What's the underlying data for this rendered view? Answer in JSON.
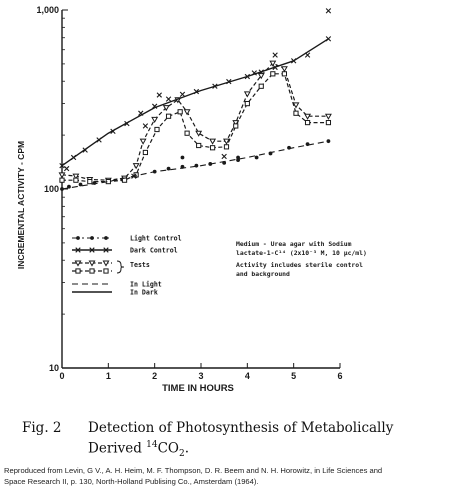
{
  "chart_data": {
    "type": "line",
    "xlabel": "TIME IN HOURS",
    "ylabel": "INCREMENTAL ACTIVITY - CPM",
    "x_scale": "linear",
    "y_scale": "log",
    "xlim": [
      0,
      6
    ],
    "ylim": [
      10,
      1000
    ],
    "x_ticks": [
      "0",
      "1",
      "2",
      "3",
      "4",
      "5",
      "6"
    ],
    "y_ticks": [
      "10",
      "100",
      "1,000"
    ],
    "grid": false,
    "legend_position": "lower-left",
    "series": [
      {
        "name": "Light Control",
        "style": "dash-dot-circle",
        "points": [
          [
            0.0,
            100
          ],
          [
            0.15,
            103
          ],
          [
            0.4,
            106
          ],
          [
            0.7,
            108
          ],
          [
            1.0,
            110
          ],
          [
            1.3,
            113
          ],
          [
            1.6,
            118
          ],
          [
            2.0,
            125
          ],
          [
            2.3,
            130
          ],
          [
            2.6,
            133
          ],
          [
            2.9,
            135
          ],
          [
            3.2,
            138
          ],
          [
            3.5,
            140
          ],
          [
            3.8,
            145
          ],
          [
            4.2,
            150
          ],
          [
            4.5,
            158
          ],
          [
            4.9,
            170
          ],
          [
            5.3,
            178
          ],
          [
            5.75,
            185
          ]
        ]
      },
      {
        "name": "Dark Control",
        "style": "solid-x",
        "points": [
          [
            0.0,
            135
          ],
          [
            0.25,
            150
          ],
          [
            0.5,
            165
          ],
          [
            0.8,
            188
          ],
          [
            1.1,
            210
          ],
          [
            1.4,
            232
          ],
          [
            1.7,
            265
          ],
          [
            2.0,
            290
          ],
          [
            2.3,
            318
          ],
          [
            2.6,
            338
          ],
          [
            2.9,
            350
          ],
          [
            3.3,
            375
          ],
          [
            3.6,
            398
          ],
          [
            4.0,
            425
          ],
          [
            4.3,
            450
          ],
          [
            4.6,
            478
          ],
          [
            5.0,
            520
          ],
          [
            5.3,
            560
          ],
          [
            5.75,
            690
          ]
        ]
      },
      {
        "name": "Tests",
        "style": "dashed-triangle",
        "points": [
          [
            0.0,
            120
          ],
          [
            0.3,
            118
          ],
          [
            0.6,
            113
          ],
          [
            1.0,
            112
          ],
          [
            1.35,
            115
          ],
          [
            1.6,
            135
          ],
          [
            1.75,
            185
          ],
          [
            2.0,
            245
          ],
          [
            2.25,
            285
          ],
          [
            2.5,
            315
          ],
          [
            2.7,
            270
          ],
          [
            2.95,
            205
          ],
          [
            3.25,
            185
          ],
          [
            3.55,
            185
          ],
          [
            3.75,
            235
          ],
          [
            4.0,
            340
          ],
          [
            4.3,
            430
          ],
          [
            4.55,
            505
          ],
          [
            4.8,
            470
          ],
          [
            5.05,
            295
          ],
          [
            5.3,
            255
          ],
          [
            5.75,
            255
          ]
        ]
      },
      {
        "name": "Tests",
        "style": "dashed-square",
        "points": [
          [
            0.0,
            112
          ],
          [
            0.3,
            112
          ],
          [
            0.6,
            110
          ],
          [
            1.0,
            110
          ],
          [
            1.35,
            112
          ],
          [
            1.6,
            120
          ],
          [
            1.8,
            160
          ],
          [
            2.05,
            215
          ],
          [
            2.3,
            255
          ],
          [
            2.55,
            270
          ],
          [
            2.7,
            205
          ],
          [
            2.95,
            175
          ],
          [
            3.25,
            170
          ],
          [
            3.55,
            172
          ],
          [
            3.75,
            225
          ],
          [
            4.0,
            300
          ],
          [
            4.3,
            375
          ],
          [
            4.55,
            440
          ],
          [
            4.8,
            440
          ],
          [
            5.05,
            265
          ],
          [
            5.3,
            235
          ],
          [
            5.75,
            235
          ]
        ]
      },
      {
        "name": "In Light",
        "style": "dashed",
        "points": [
          [
            0.0,
            100
          ],
          [
            1.0,
            110
          ],
          [
            2.0,
            125
          ],
          [
            3.0,
            135
          ],
          [
            4.0,
            150
          ],
          [
            5.0,
            170
          ],
          [
            5.75,
            185
          ]
        ]
      },
      {
        "name": "In Dark",
        "style": "solid",
        "points": [
          [
            0.0,
            135
          ],
          [
            1.0,
            205
          ],
          [
            2.0,
            285
          ],
          [
            3.0,
            355
          ],
          [
            4.0,
            425
          ],
          [
            5.0,
            520
          ],
          [
            5.75,
            690
          ]
        ]
      }
    ],
    "scatter_points": [
      {
        "x": 0.1,
        "y": 130,
        "marker": "x"
      },
      {
        "x": 1.55,
        "y": 118,
        "marker": "x"
      },
      {
        "x": 1.8,
        "y": 225,
        "marker": "x"
      },
      {
        "x": 2.1,
        "y": 335,
        "marker": "x"
      },
      {
        "x": 3.5,
        "y": 152,
        "marker": "x"
      },
      {
        "x": 4.15,
        "y": 445,
        "marker": "x"
      },
      {
        "x": 4.6,
        "y": 560,
        "marker": "x"
      },
      {
        "x": 5.75,
        "y": 990,
        "marker": "x"
      },
      {
        "x": 2.6,
        "y": 150,
        "marker": "dot"
      },
      {
        "x": 3.8,
        "y": 150,
        "marker": "dot"
      }
    ],
    "legend": [
      {
        "label": "Light Control",
        "style": "dash-dot-circle"
      },
      {
        "label": "Dark Control",
        "style": "solid-x"
      },
      {
        "label": "Tests",
        "style": "dashed-triangle"
      },
      {
        "label": "Tests",
        "style": "dashed-square",
        "label_hidden": true
      },
      {
        "label": "In Light",
        "style": "dashed"
      },
      {
        "label": "In Dark",
        "style": "solid"
      }
    ],
    "annotation_lines": [
      "Medium - Urea agar with Sodium",
      "lactate-1-C¹⁴ (2x10⁻³ M, 10 µc/ml)",
      "",
      "Activity includes sterile control",
      "and background"
    ]
  },
  "caption": {
    "number": "Fig. 2",
    "title_line1": "Detection of Photosynthesis of Metabolically",
    "title_line2_prefix": "Derived ",
    "isotope_mass": "14",
    "formula": "CO",
    "formula_subscript": "2",
    "end": "."
  },
  "source_note": {
    "line1": "Reproduced from Levin, G V., A. H. Heim, M. F. Thompson, D. R. Beem and N. H. Horowitz, in Life Sciences and",
    "line2": "Space Research II, p. 130, North-Holland Publising Co., Amsterdam (1964)."
  },
  "colors": {
    "ink": "#1a1a1a",
    "background": "#ffffff"
  }
}
